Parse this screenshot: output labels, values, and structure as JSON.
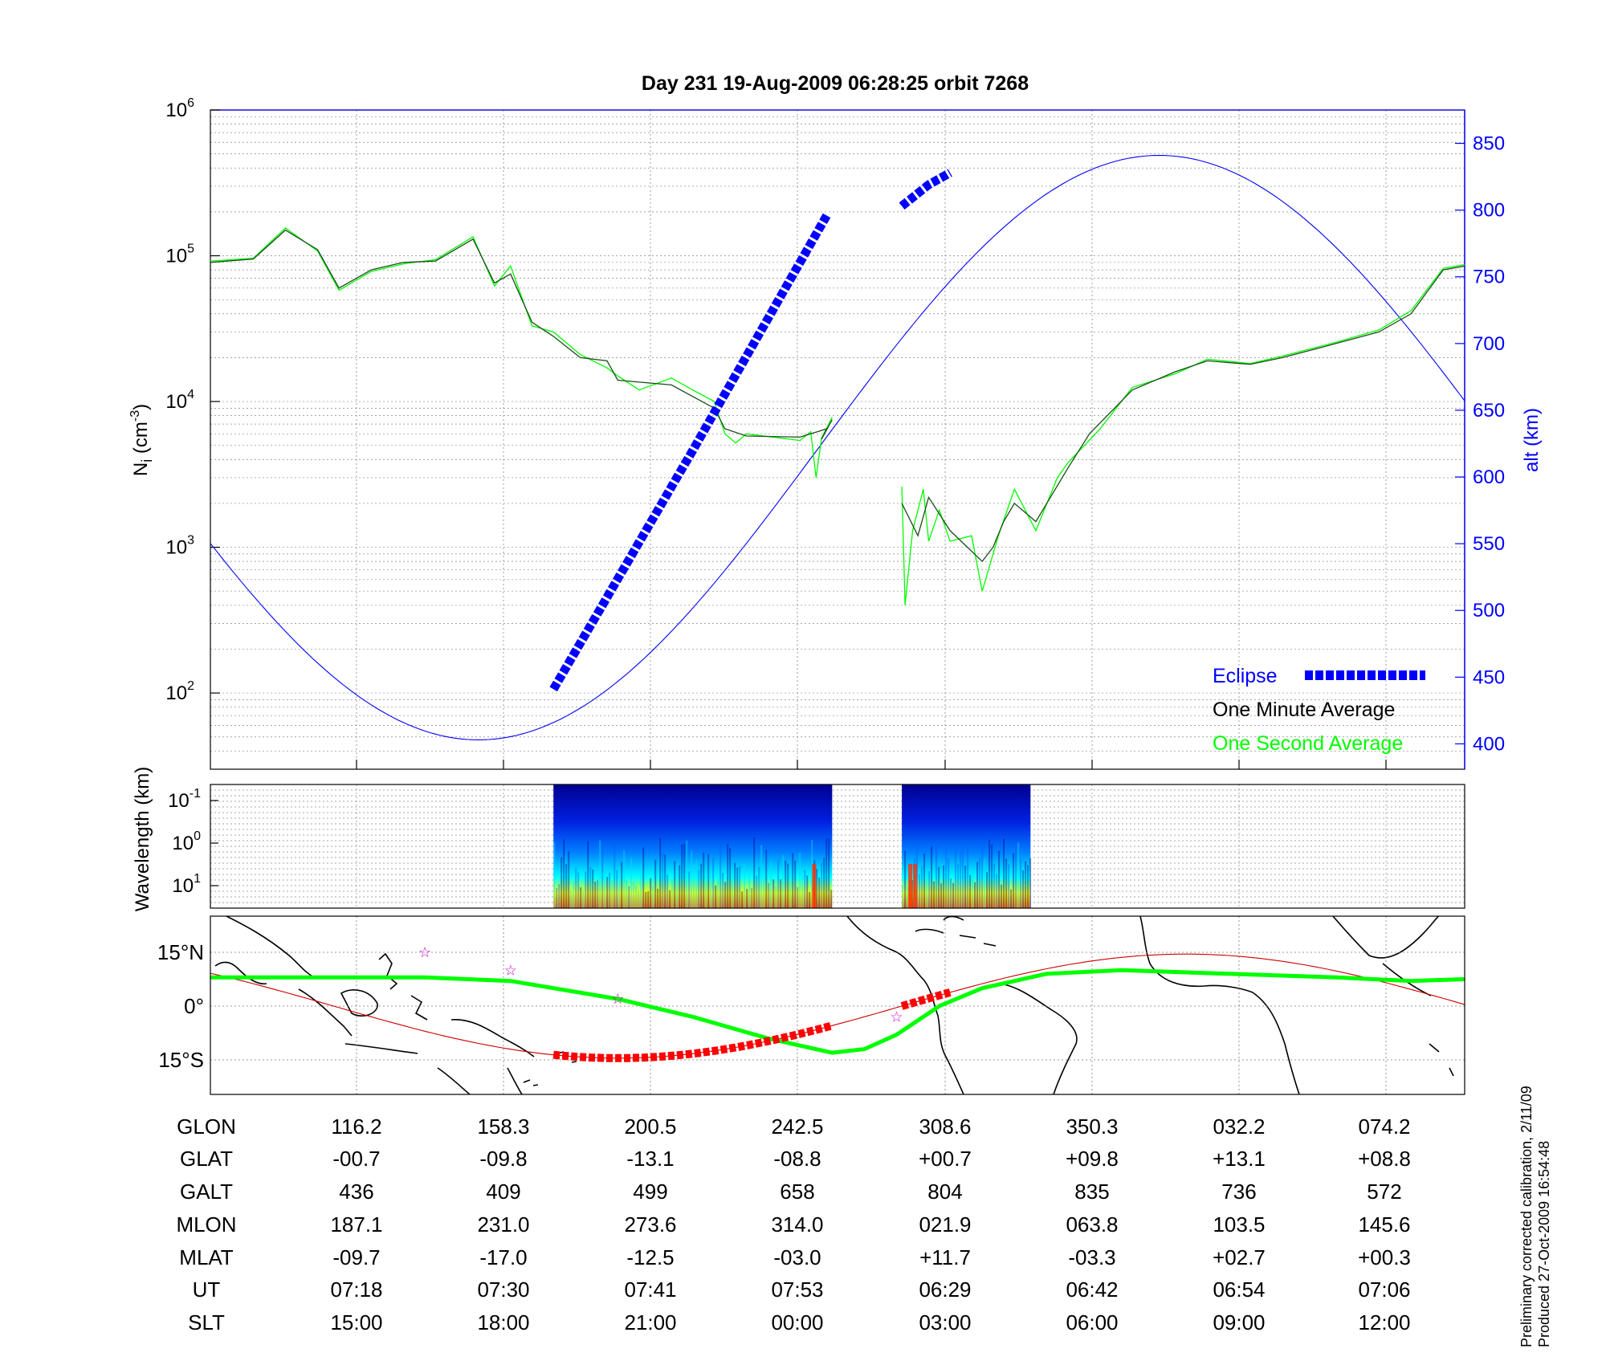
{
  "title": "Day 231  19-Aug-2009 06:28:25   orbit 7268",
  "colors": {
    "eclipse": "#0000ff",
    "minute_avg": "#000000",
    "second_avg": "#00ff00",
    "altitude": "#0000ff",
    "track": "#00ff00",
    "orbit_path": "#cc0000",
    "station": "#cc00cc",
    "eclipse_track": "#ff0000"
  },
  "chart_data": [
    {
      "type": "line",
      "ylabel_left": "N",
      "ylabel_left_sub": "i",
      "ylabel_left_unit": " (cm",
      "ylabel_left_exp": "-3",
      "ylabel_left_close": ")",
      "ylabel_right": "alt (km)",
      "y_scale": "log",
      "ylim": [
        30,
        1000000
      ],
      "y_ticks": [
        {
          "base": "10",
          "exp": "2",
          "v": 100
        },
        {
          "base": "10",
          "exp": "3",
          "v": 1000
        },
        {
          "base": "10",
          "exp": "4",
          "v": 10000
        },
        {
          "base": "10",
          "exp": "5",
          "v": 100000
        },
        {
          "base": "10",
          "exp": "6",
          "v": 1000000
        }
      ],
      "y2lim": [
        381,
        875
      ],
      "y2_ticks": [
        "400",
        "450",
        "500",
        "550",
        "600",
        "650",
        "700",
        "750",
        "800",
        "850"
      ],
      "legend": [
        "Eclipse",
        "One Minute Average",
        "One Second Average"
      ],
      "legend_position": "bottom-right",
      "grid": true,
      "series": [
        {
          "name": "One Minute Average",
          "segments": [
            [
              [
                0,
                90000
              ],
              [
                0.04,
                95000
              ],
              [
                0.07,
                150000
              ],
              [
                0.1,
                110000
              ],
              [
                0.12,
                60000
              ],
              [
                0.15,
                80000
              ],
              [
                0.18,
                90000
              ],
              [
                0.21,
                92000
              ],
              [
                0.245,
                130000
              ],
              [
                0.265,
                65000
              ],
              [
                0.28,
                75000
              ],
              [
                0.3,
                35000
              ],
              [
                0.32,
                28000
              ],
              [
                0.345,
                20000
              ],
              [
                0.37,
                19000
              ],
              [
                0.38,
                14000
              ],
              [
                0.43,
                13000
              ],
              [
                0.47,
                9000
              ],
              [
                0.48,
                6500
              ],
              [
                0.5,
                5800
              ],
              [
                0.55,
                5700
              ],
              [
                0.56,
                6000
              ],
              [
                0.575,
                6500
              ],
              [
                0.57,
                5500
              ],
              [
                0.58,
                7500
              ]
            ],
            [
              [
                0.645,
                2000
              ],
              [
                0.66,
                1200
              ],
              [
                0.67,
                2200
              ],
              [
                0.69,
                1300
              ],
              [
                0.72,
                800
              ],
              [
                0.73,
                1000
              ],
              [
                0.74,
                1500
              ],
              [
                0.75,
                2000
              ],
              [
                0.77,
                1500
              ],
              [
                0.8,
                3500
              ],
              [
                0.82,
                6000
              ],
              [
                0.86,
                12000
              ],
              [
                0.9,
                16000
              ],
              [
                0.93,
                19000
              ],
              [
                0.97,
                18000
              ],
              [
                1.0,
                20000
              ],
              [
                1.05,
                25000
              ],
              [
                1.09,
                30000
              ],
              [
                1.12,
                40000
              ],
              [
                1.15,
                80000
              ],
              [
                1.17,
                85000
              ]
            ]
          ]
        },
        {
          "name": "One Second Average",
          "segments": [
            [
              [
                0,
                92000
              ],
              [
                0.04,
                96000
              ],
              [
                0.07,
                155000
              ],
              [
                0.1,
                108000
              ],
              [
                0.12,
                58000
              ],
              [
                0.15,
                78000
              ],
              [
                0.18,
                88000
              ],
              [
                0.21,
                94000
              ],
              [
                0.245,
                135000
              ],
              [
                0.265,
                62000
              ],
              [
                0.28,
                85000
              ],
              [
                0.3,
                33000
              ],
              [
                0.32,
                30000
              ],
              [
                0.345,
                21000
              ],
              [
                0.37,
                17000
              ],
              [
                0.38,
                15000
              ],
              [
                0.4,
                12000
              ],
              [
                0.43,
                14500
              ],
              [
                0.45,
                12000
              ],
              [
                0.47,
                10000
              ],
              [
                0.48,
                6000
              ],
              [
                0.49,
                5200
              ],
              [
                0.5,
                6000
              ],
              [
                0.55,
                5400
              ],
              [
                0.56,
                6200
              ],
              [
                0.565,
                3000
              ],
              [
                0.57,
                5600
              ],
              [
                0.58,
                7800
              ]
            ],
            [
              [
                0.645,
                2600
              ],
              [
                0.648,
                400
              ],
              [
                0.655,
                1300
              ],
              [
                0.665,
                2500
              ],
              [
                0.67,
                1100
              ],
              [
                0.68,
                1800
              ],
              [
                0.69,
                1100
              ],
              [
                0.71,
                1200
              ],
              [
                0.72,
                500
              ],
              [
                0.735,
                1200
              ],
              [
                0.75,
                2500
              ],
              [
                0.77,
                1300
              ],
              [
                0.79,
                3000
              ],
              [
                0.8,
                3800
              ],
              [
                0.83,
                6500
              ],
              [
                0.86,
                12500
              ],
              [
                0.9,
                15500
              ],
              [
                0.93,
                19500
              ],
              [
                0.97,
                18200
              ],
              [
                1.0,
                20500
              ],
              [
                1.05,
                25500
              ],
              [
                1.09,
                31000
              ],
              [
                1.12,
                42000
              ],
              [
                1.15,
                82000
              ],
              [
                1.17,
                87000
              ]
            ]
          ]
        },
        {
          "name": "alt",
          "axis": "right",
          "min_x": 0.25,
          "min_alt": 403,
          "max_x": 0.885,
          "max_alt": 841,
          "x_start": 0,
          "x_end": 1.17
        },
        {
          "name": "Eclipse",
          "axis": "right",
          "segments": [
            [
              [
                0.32,
                441
              ],
              [
                0.45,
                620
              ],
              [
                0.575,
                796
              ]
            ],
            [
              [
                0.645,
                803
              ],
              [
                0.67,
                819
              ],
              [
                0.69,
                828
              ]
            ]
          ]
        }
      ]
    },
    {
      "type": "heatmap",
      "ylabel": "Wavelength (km)",
      "y_ticks": [
        {
          "base": "10",
          "exp": "-1"
        },
        {
          "base": "10",
          "exp": "0"
        },
        {
          "base": "10",
          "exp": "1"
        }
      ],
      "segments": [
        [
          0.32,
          0.58
        ],
        [
          0.645,
          0.765
        ]
      ],
      "colormap": [
        "#00008f",
        "#0000ff",
        "#0080ff",
        "#00ffff",
        "#80ff80",
        "#ffff00",
        "#ff8000",
        "#ff0000"
      ]
    },
    {
      "type": "map",
      "y_ticks": [
        "15°N",
        "0°",
        "15°S"
      ],
      "stations": [
        [
          0.2,
          15
        ],
        [
          0.28,
          10
        ],
        [
          0.38,
          2
        ],
        [
          0.64,
          -3
        ]
      ]
    }
  ],
  "table": {
    "rows": [
      {
        "label": "GLON",
        "values": [
          "116.2",
          "158.3",
          "200.5",
          "242.5",
          "308.6",
          "350.3",
          "032.2",
          "074.2"
        ]
      },
      {
        "label": "GLAT",
        "values": [
          "-00.7",
          "-09.8",
          "-13.1",
          "-08.8",
          "+00.7",
          "+09.8",
          "+13.1",
          "+08.8"
        ]
      },
      {
        "label": "GALT",
        "values": [
          "436",
          "409",
          "499",
          "658",
          "804",
          "835",
          "736",
          "572"
        ]
      },
      {
        "label": "MLON",
        "values": [
          "187.1",
          "231.0",
          "273.6",
          "314.0",
          "021.9",
          "063.8",
          "103.5",
          "145.6"
        ]
      },
      {
        "label": "MLAT",
        "values": [
          "-09.7",
          "-17.0",
          "-12.5",
          "-03.0",
          "+11.7",
          "-03.3",
          "+02.7",
          "+00.3"
        ]
      },
      {
        "label": "UT",
        "values": [
          "07:18",
          "07:30",
          "07:41",
          "07:53",
          "06:29",
          "06:42",
          "06:54",
          "07:06"
        ]
      },
      {
        "label": "SLT",
        "values": [
          "15:00",
          "18:00",
          "21:00",
          "00:00",
          "03:00",
          "06:00",
          "09:00",
          "12:00"
        ]
      }
    ]
  },
  "footer": {
    "line1": "Preliminary corrected calibration, 2/11/09",
    "line2": "Produced 27-Oct-2009 16:54:48"
  }
}
